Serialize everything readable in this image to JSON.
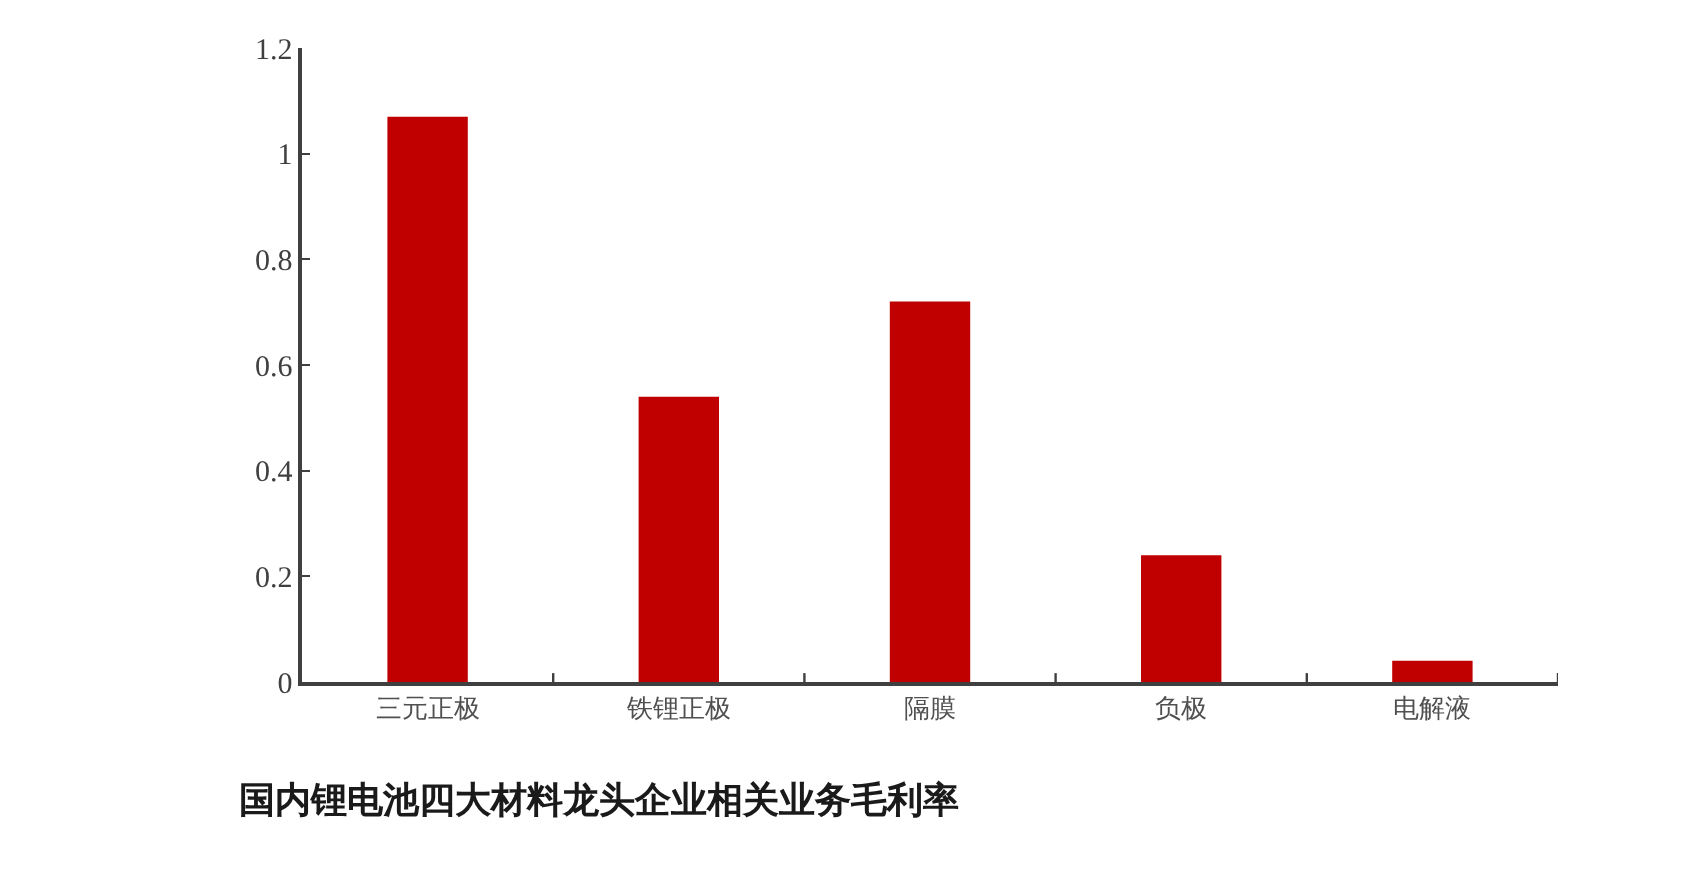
{
  "chart_data": {
    "type": "bar",
    "title": "国内锂电池四大材料龙头企业相关业务毛利率",
    "categories": [
      "三元正极",
      "铁锂正极",
      "隔膜",
      "负极",
      "电解液"
    ],
    "values": [
      1.07,
      0.54,
      0.72,
      0.24,
      0.04
    ],
    "color": "#c00000",
    "ylim": [
      0,
      1.2
    ],
    "yticks": [
      0,
      0.2,
      0.4,
      0.6,
      0.8,
      1,
      1.2
    ]
  }
}
